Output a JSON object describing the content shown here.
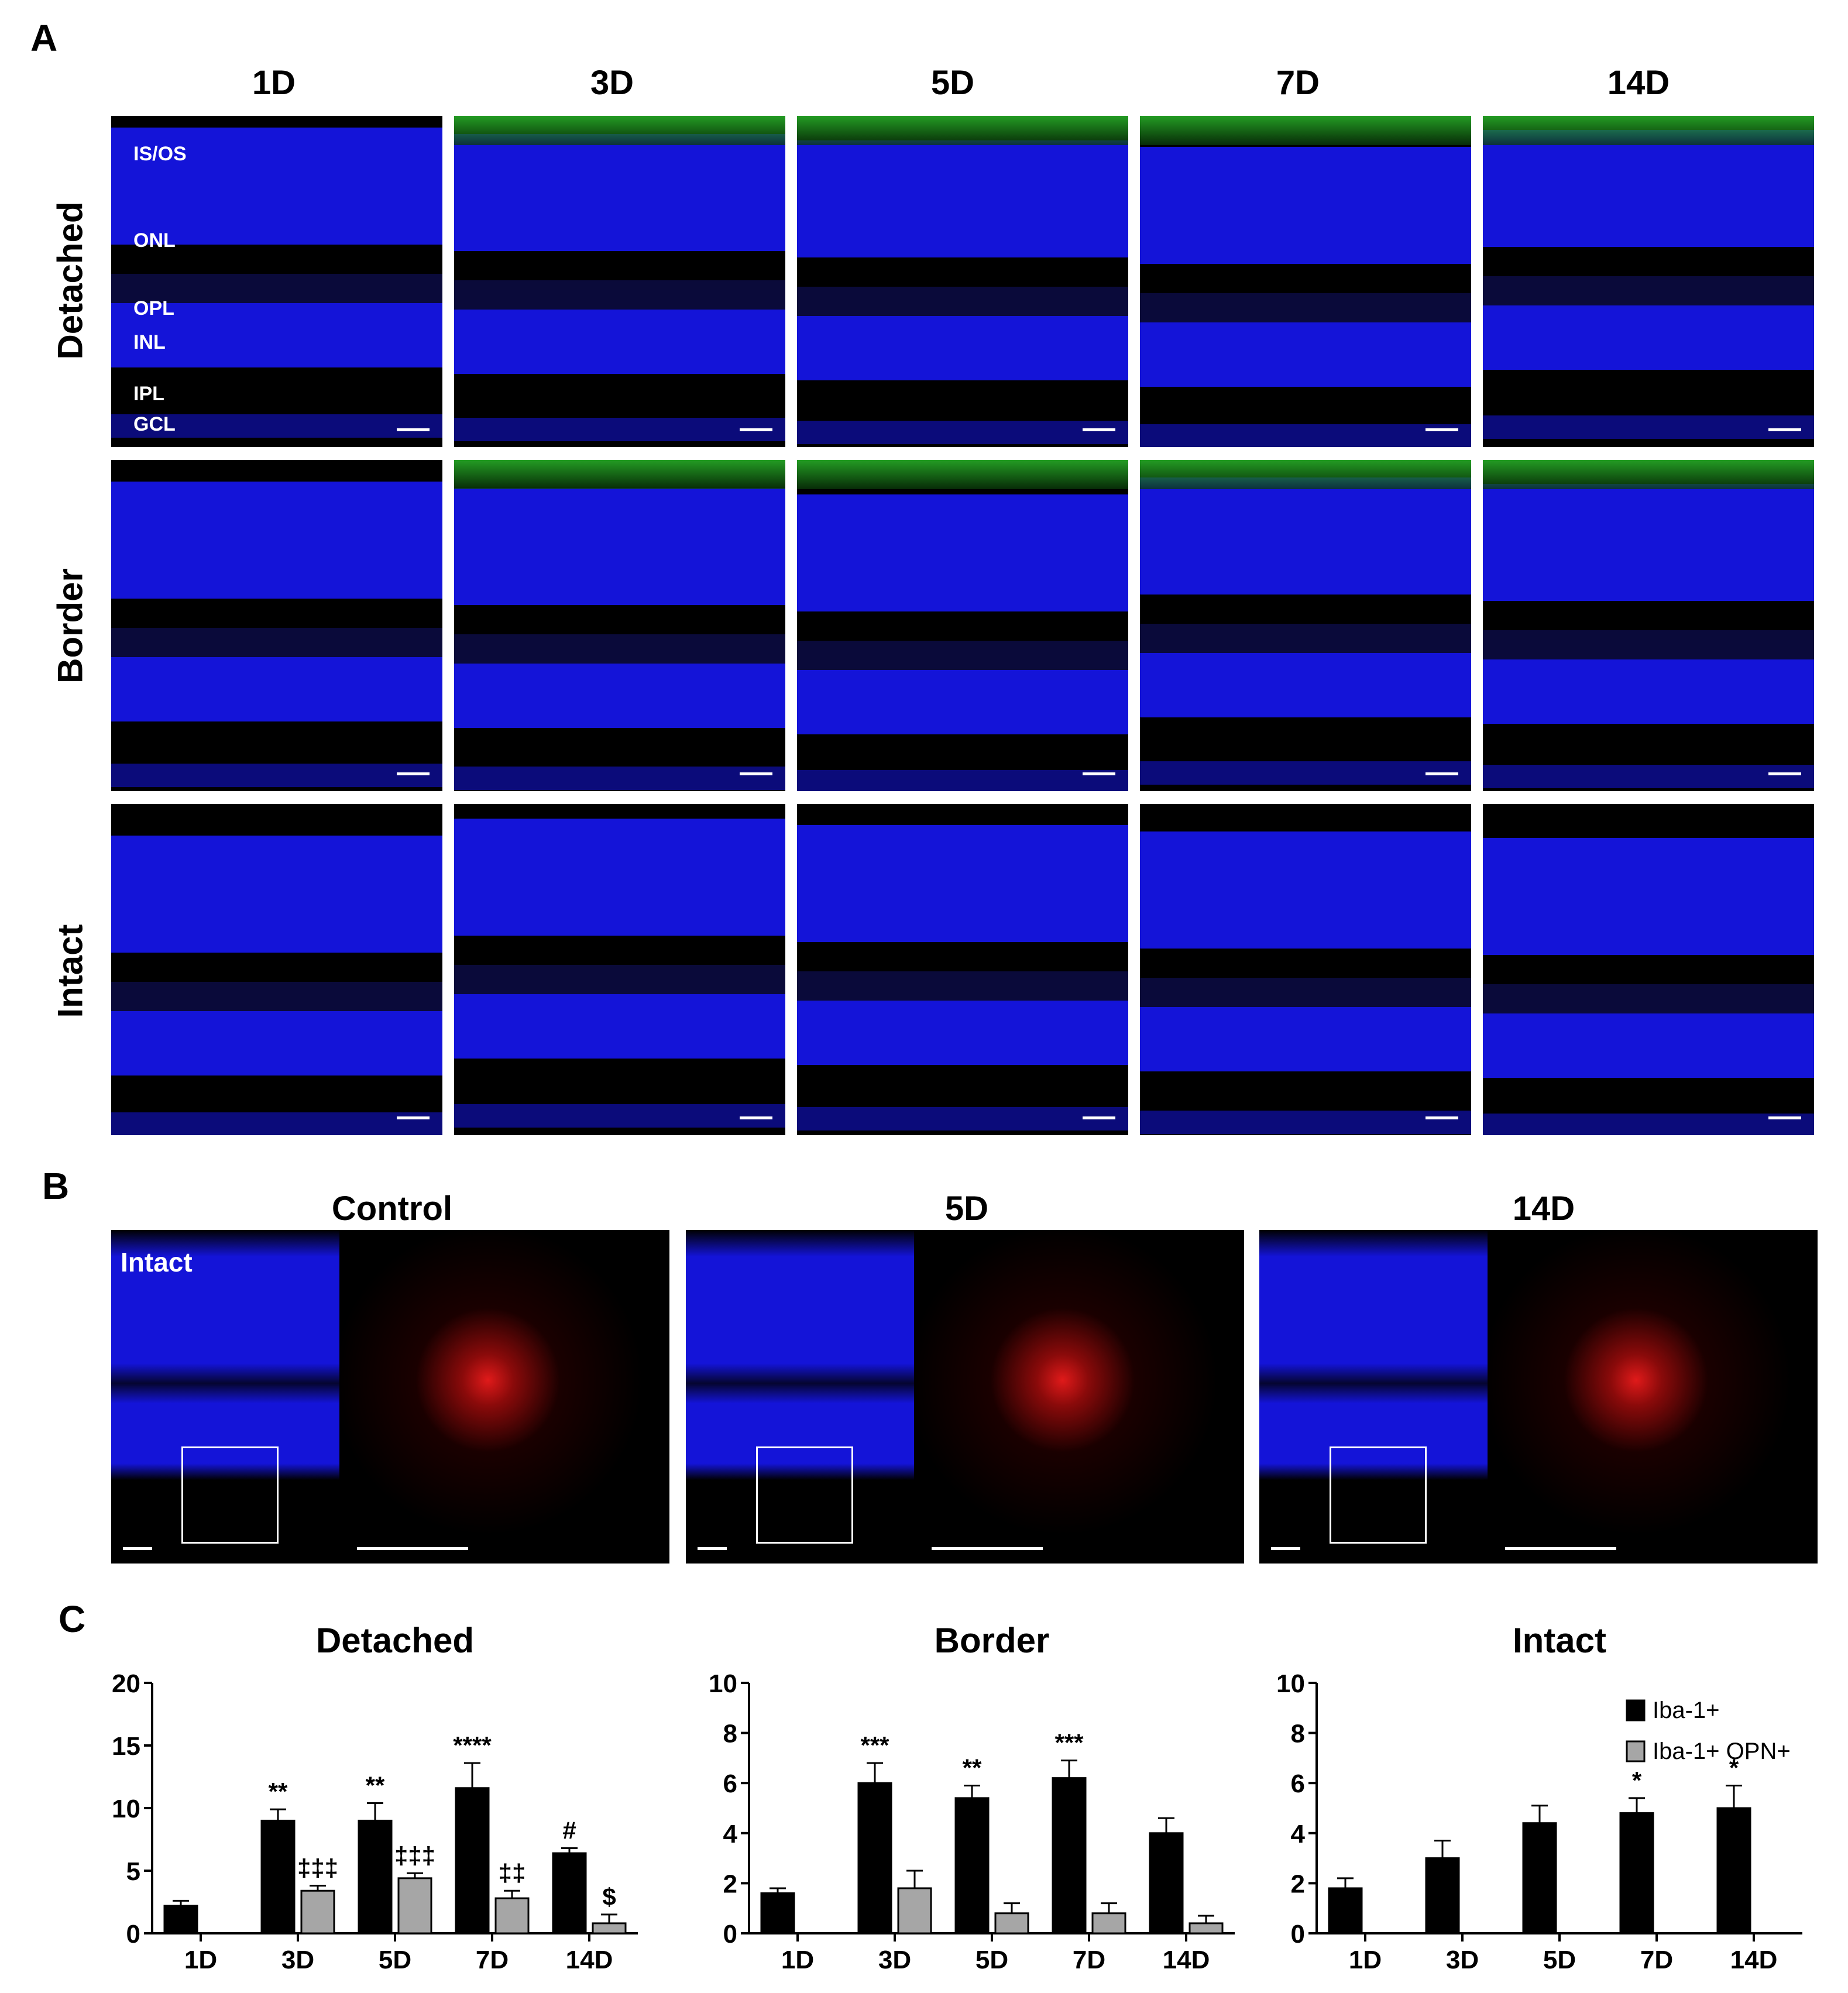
{
  "panel_a": {
    "letter": "A",
    "columns": [
      "1D",
      "3D",
      "5D",
      "7D",
      "14D"
    ],
    "rows": [
      "Detached",
      "Border",
      "Intact"
    ],
    "layer_labels": [
      "IS/OS",
      "ONL",
      "OPL",
      "INL",
      "IPL",
      "GCL"
    ]
  },
  "panel_b": {
    "letter": "B",
    "titles": [
      "Control",
      "5D",
      "14D"
    ],
    "inset_label": "Intact"
  },
  "panel_c": {
    "letter": "C"
  },
  "colors": {
    "nuclei": "#1414d8",
    "iba1": "#e01a1a",
    "opn": "#2fd02f",
    "bar_iba1": "#000000",
    "bar_opn": "#a6a6a6"
  },
  "chart_data": [
    {
      "type": "bar",
      "title": "Detached",
      "categories": [
        "1D",
        "3D",
        "5D",
        "7D",
        "14D"
      ],
      "ylim": [
        0,
        20
      ],
      "yticks": [
        0,
        5,
        10,
        15,
        20
      ],
      "series": [
        {
          "name": "Iba-1+",
          "values": [
            2.2,
            9.0,
            9.0,
            11.6,
            6.4
          ],
          "errors": [
            0.4,
            0.9,
            1.4,
            2.0,
            0.4
          ],
          "annotations": [
            "",
            "**",
            "**",
            "****",
            "#"
          ]
        },
        {
          "name": "Iba-1+ OPN+",
          "values": [
            0,
            3.4,
            4.4,
            2.8,
            0.8
          ],
          "errors": [
            0,
            0.4,
            0.4,
            0.6,
            0.7
          ],
          "annotations": [
            "",
            "‡‡‡",
            "‡‡‡",
            "‡‡",
            "$"
          ]
        }
      ]
    },
    {
      "type": "bar",
      "title": "Border",
      "categories": [
        "1D",
        "3D",
        "5D",
        "7D",
        "14D"
      ],
      "ylim": [
        0,
        10
      ],
      "yticks": [
        0,
        2,
        4,
        6,
        8,
        10
      ],
      "series": [
        {
          "name": "Iba-1+",
          "values": [
            1.6,
            6.0,
            5.4,
            6.2,
            4.0
          ],
          "errors": [
            0.2,
            0.8,
            0.5,
            0.7,
            0.6
          ],
          "annotations": [
            "",
            "***",
            "**",
            "***",
            ""
          ]
        },
        {
          "name": "Iba-1+ OPN+",
          "values": [
            0,
            1.8,
            0.8,
            0.8,
            0.4
          ],
          "errors": [
            0,
            0.7,
            0.4,
            0.4,
            0.3
          ],
          "annotations": [
            "",
            "",
            "",
            "",
            ""
          ]
        }
      ]
    },
    {
      "type": "bar",
      "title": "Intact",
      "categories": [
        "1D",
        "3D",
        "5D",
        "7D",
        "14D"
      ],
      "ylim": [
        0,
        10
      ],
      "yticks": [
        0,
        2,
        4,
        6,
        8,
        10
      ],
      "legend": [
        "Iba-1+",
        "Iba-1+ OPN+"
      ],
      "legend_position": "top-right",
      "series": [
        {
          "name": "Iba-1+",
          "values": [
            1.8,
            3.0,
            4.4,
            4.8,
            5.0
          ],
          "errors": [
            0.4,
            0.7,
            0.7,
            0.6,
            0.9
          ],
          "annotations": [
            "",
            "",
            "",
            "*",
            "*"
          ]
        },
        {
          "name": "Iba-1+ OPN+",
          "values": [
            0,
            0,
            0,
            0,
            0
          ],
          "errors": [
            0,
            0,
            0,
            0,
            0
          ],
          "annotations": [
            "",
            "",
            "",
            "",
            ""
          ]
        }
      ]
    }
  ]
}
